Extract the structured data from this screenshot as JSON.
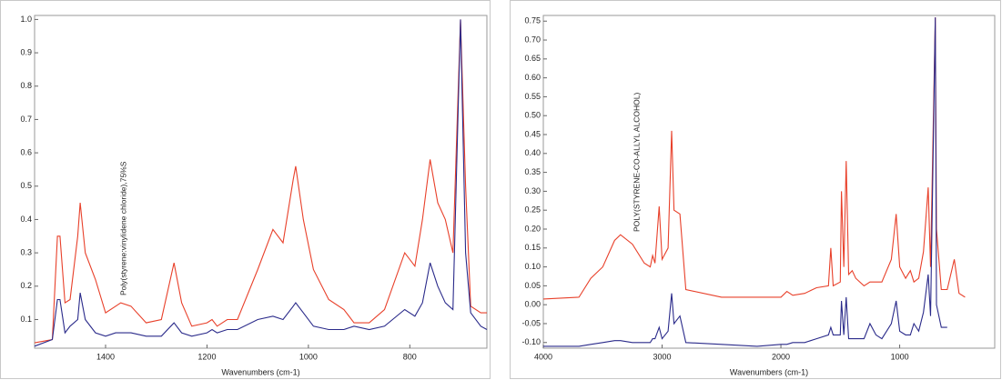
{
  "chart_data": [
    {
      "type": "line",
      "xlabel": "Wavenumbers (cm-1)",
      "annotation": "Poly(styrene:vinylidene chloride),75%S",
      "xlim": [
        1540,
        648
      ],
      "ylim": [
        0.014,
        1.012
      ],
      "xticks": [
        1400,
        1200,
        1000,
        800
      ],
      "yticks": [
        0.1,
        0.2,
        0.3,
        0.4,
        0.5,
        0.6,
        0.7,
        0.8,
        0.9,
        {
          "value": 1,
          "label": "1.0"
        }
      ],
      "x": [
        1540,
        1505,
        1495,
        1490,
        1480,
        1470,
        1455,
        1450,
        1440,
        1420,
        1400,
        1380,
        1370,
        1350,
        1320,
        1290,
        1265,
        1250,
        1230,
        1200,
        1190,
        1180,
        1160,
        1140,
        1100,
        1070,
        1050,
        1030,
        1025,
        1010,
        990,
        960,
        930,
        910,
        880,
        850,
        810,
        790,
        775,
        760,
        745,
        730,
        715,
        700,
        690,
        680,
        660,
        648
      ],
      "series": [
        {
          "color": "#e8402a",
          "values": [
            0.03,
            0.04,
            0.35,
            0.35,
            0.15,
            0.16,
            0.35,
            0.45,
            0.3,
            0.22,
            0.12,
            0.14,
            0.15,
            0.14,
            0.09,
            0.1,
            0.27,
            0.15,
            0.08,
            0.09,
            0.1,
            0.08,
            0.1,
            0.1,
            0.25,
            0.37,
            0.33,
            0.52,
            0.56,
            0.4,
            0.25,
            0.16,
            0.13,
            0.09,
            0.09,
            0.13,
            0.3,
            0.26,
            0.4,
            0.58,
            0.45,
            0.4,
            0.3,
            1.0,
            0.5,
            0.14,
            0.12,
            0.12
          ]
        },
        {
          "color": "#2a2a8a",
          "values": [
            0.02,
            0.04,
            0.16,
            0.16,
            0.06,
            0.08,
            0.1,
            0.18,
            0.1,
            0.06,
            0.05,
            0.06,
            0.06,
            0.06,
            0.05,
            0.05,
            0.09,
            0.06,
            0.05,
            0.06,
            0.07,
            0.06,
            0.07,
            0.07,
            0.1,
            0.11,
            0.1,
            0.14,
            0.15,
            0.12,
            0.08,
            0.07,
            0.07,
            0.08,
            0.07,
            0.08,
            0.13,
            0.11,
            0.15,
            0.27,
            0.2,
            0.15,
            0.13,
            1.0,
            0.3,
            0.12,
            0.08,
            0.07
          ]
        }
      ]
    },
    {
      "type": "line",
      "xlabel": "Wavenumbers (cm-1)",
      "annotation": "POLY(STYRENE-CO-ALLYL ALCOHOL)",
      "xlim": [
        4000,
        200
      ],
      "ylim": [
        -0.115,
        0.765
      ],
      "xticks": [
        4000,
        3000,
        2000,
        1000
      ],
      "yticks": [
        {
          "value": -0.1,
          "label": "-0.10"
        },
        -0.05,
        {
          "value": 0,
          "label": "0.00"
        },
        0.05,
        {
          "value": 0.1,
          "label": "0.10"
        },
        0.15,
        {
          "value": 0.2,
          "label": "0.20"
        },
        0.25,
        {
          "value": 0.3,
          "label": "0.30"
        },
        0.35,
        {
          "value": 0.4,
          "label": "0.40"
        },
        0.45,
        {
          "value": 0.5,
          "label": "0.50"
        },
        0.55,
        {
          "value": 0.6,
          "label": "0.60"
        },
        0.65,
        {
          "value": 0.7,
          "label": "0.70"
        },
        0.75
      ],
      "x": [
        4000,
        3700,
        3600,
        3500,
        3400,
        3350,
        3250,
        3150,
        3100,
        3080,
        3060,
        3025,
        3000,
        2950,
        2920,
        2900,
        2850,
        2800,
        2500,
        2200,
        2000,
        1950,
        1900,
        1800,
        1700,
        1600,
        1580,
        1560,
        1500,
        1490,
        1470,
        1450,
        1430,
        1400,
        1370,
        1300,
        1250,
        1200,
        1150,
        1070,
        1030,
        1000,
        950,
        910,
        880,
        840,
        800,
        760,
        740,
        700,
        690,
        650,
        600,
        540,
        500,
        450
      ],
      "series": [
        {
          "color": "#e8402a",
          "values": [
            0.015,
            0.02,
            0.07,
            0.1,
            0.17,
            0.185,
            0.16,
            0.11,
            0.1,
            0.13,
            0.11,
            0.26,
            0.12,
            0.15,
            0.46,
            0.25,
            0.24,
            0.04,
            0.02,
            0.02,
            0.02,
            0.035,
            0.025,
            0.03,
            0.045,
            0.05,
            0.15,
            0.05,
            0.06,
            0.3,
            0.1,
            0.38,
            0.08,
            0.09,
            0.07,
            0.05,
            0.06,
            0.06,
            0.06,
            0.12,
            0.24,
            0.1,
            0.07,
            0.09,
            0.06,
            0.07,
            0.14,
            0.31,
            0.1,
            0.76,
            0.2,
            0.04,
            0.04,
            0.12,
            0.03,
            0.02
          ]
        },
        {
          "color": "#2a2a8a",
          "values": [
            -0.11,
            -0.11,
            -0.105,
            -0.1,
            -0.095,
            -0.095,
            -0.1,
            -0.1,
            -0.1,
            -0.09,
            -0.09,
            -0.06,
            -0.09,
            -0.07,
            0.03,
            -0.05,
            -0.03,
            -0.1,
            -0.105,
            -0.11,
            -0.105,
            -0.105,
            -0.1,
            -0.1,
            -0.09,
            -0.08,
            -0.06,
            -0.08,
            -0.08,
            0.01,
            -0.08,
            0.02,
            -0.09,
            -0.09,
            -0.09,
            -0.09,
            -0.05,
            -0.08,
            -0.09,
            -0.05,
            0.01,
            -0.07,
            -0.08,
            -0.08,
            -0.05,
            -0.07,
            -0.02,
            0.08,
            -0.03,
            0.76,
            0.0,
            -0.06,
            -0.06,
            null,
            null,
            null
          ]
        }
      ]
    }
  ]
}
